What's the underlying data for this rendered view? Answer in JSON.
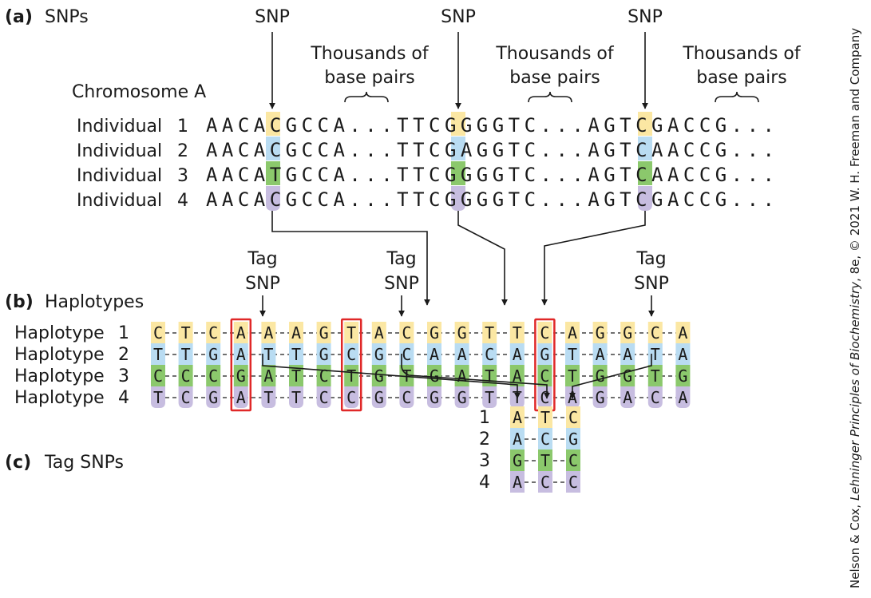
{
  "colors": {
    "yellow": "#fbe7a3",
    "blue": "#b9dcf2",
    "green": "#8bc86c",
    "purple": "#c7bde0",
    "tag_box": "#e02828",
    "line": "#1a1a1a"
  },
  "section_a": {
    "tag": "(a)",
    "title": "SNPs",
    "chromosome_label": "Chromosome A",
    "snp_label": "SNP",
    "thousands_line1": "Thousands of",
    "thousands_line2": "base pairs",
    "row_label": "Individual",
    "rows": [
      {
        "num": "1",
        "segs": [
          "AACA",
          "C",
          "GCCA...TTCG",
          "G",
          "GGTC...AGTC",
          "G",
          "ACCG..."
        ]
      },
      {
        "num": "2",
        "segs": [
          "AACA",
          "C",
          "GCCA...TTCG",
          "A",
          "GGTC...AGTC",
          "A",
          "ACCG..."
        ]
      },
      {
        "num": "3",
        "segs": [
          "AACA",
          "T",
          "GCCA...TTCG",
          "G",
          "GGTC...AGTC",
          "A",
          "ACCG..."
        ]
      },
      {
        "num": "4",
        "segs": [
          "AACA",
          "C",
          "GCCA...TTCG",
          "G",
          "GGTC...AGTC",
          "G",
          "ACCG..."
        ]
      }
    ],
    "snp_colors": [
      [
        "yellow",
        "yellow",
        "yellow"
      ],
      [
        "blue",
        "blue",
        "blue"
      ],
      [
        "green",
        "green",
        "green"
      ],
      [
        "purple",
        "purple",
        "purple"
      ]
    ]
  },
  "section_b": {
    "tag": "(b)",
    "title": "Haplotypes",
    "tag_snp_line1": "Tag",
    "tag_snp_line2": "SNP",
    "row_label": "Haplotype",
    "rows": [
      {
        "num": "1",
        "color": "yellow",
        "bases": [
          "C",
          "T",
          "C",
          "A",
          "A",
          "A",
          "G",
          "T",
          "A",
          "C",
          "G",
          "G",
          "T",
          "T",
          "C",
          "A",
          "G",
          "G",
          "C",
          "A"
        ]
      },
      {
        "num": "2",
        "color": "blue",
        "bases": [
          "T",
          "T",
          "G",
          "A",
          "T",
          "T",
          "G",
          "C",
          "G",
          "C",
          "A",
          "A",
          "C",
          "A",
          "G",
          "T",
          "A",
          "A",
          "T",
          "A"
        ]
      },
      {
        "num": "3",
        "color": "green",
        "bases": [
          "C",
          "C",
          "C",
          "G",
          "A",
          "T",
          "C",
          "T",
          "G",
          "T",
          "G",
          "A",
          "T",
          "A",
          "C",
          "T",
          "G",
          "G",
          "T",
          "G"
        ]
      },
      {
        "num": "4",
        "color": "purple",
        "bases": [
          "T",
          "C",
          "G",
          "A",
          "T",
          "T",
          "C",
          "C",
          "G",
          "C",
          "G",
          "G",
          "T",
          "T",
          "C",
          "A",
          "G",
          "A",
          "C",
          "A"
        ]
      }
    ],
    "tag_positions": [
      3,
      7,
      14
    ]
  },
  "section_c": {
    "tag": "(c)",
    "title": "Tag SNPs",
    "rows": [
      {
        "num": "1",
        "color": "yellow",
        "bases": [
          "A",
          "T",
          "C"
        ]
      },
      {
        "num": "2",
        "color": "blue",
        "bases": [
          "A",
          "C",
          "G"
        ]
      },
      {
        "num": "3",
        "color": "green",
        "bases": [
          "G",
          "T",
          "C"
        ]
      },
      {
        "num": "4",
        "color": "purple",
        "bases": [
          "A",
          "C",
          "C"
        ]
      }
    ]
  },
  "credit": {
    "prefix": "Nelson & Cox, ",
    "book": "Lehninger Principles of Biochemistry",
    "suffix": ", 8e, © 2021 W. H. Freeman and Company"
  }
}
